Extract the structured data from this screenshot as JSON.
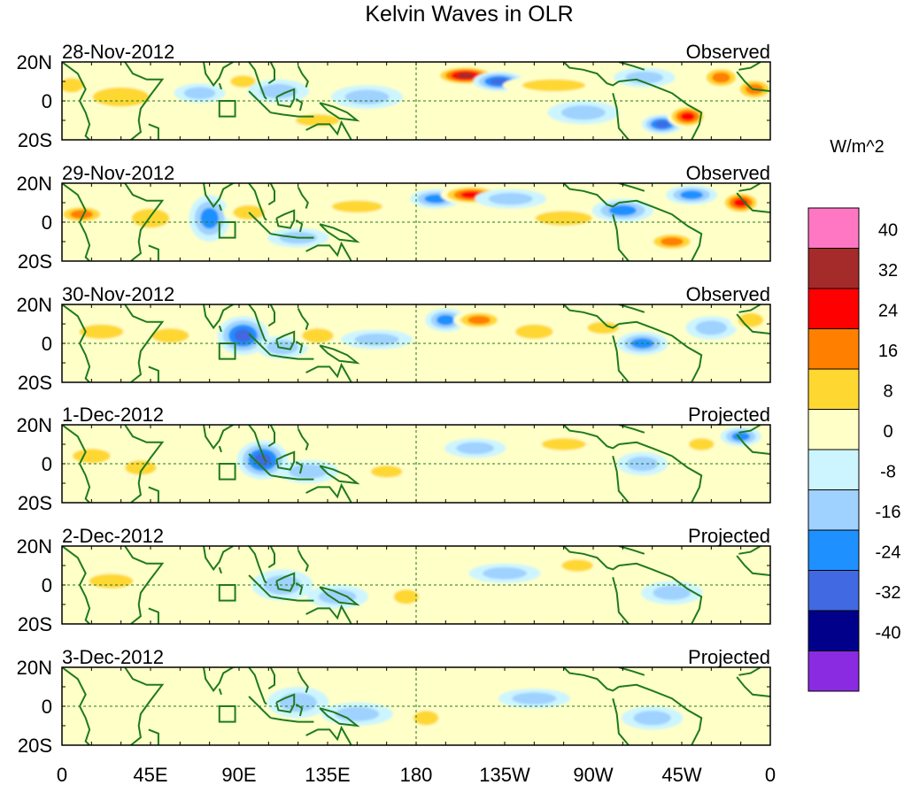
{
  "chart_data": {
    "type": "heatmap",
    "title": "Kelvin Waves in OLR",
    "units_label": "W/m^2",
    "lat_ticks": [
      "20N",
      "0",
      "20S"
    ],
    "lat_range": [
      -20,
      20
    ],
    "lon_range": [
      0,
      360
    ],
    "lon_ticks": [
      {
        "lon": 0,
        "label": "0"
      },
      {
        "lon": 45,
        "label": "45E"
      },
      {
        "lon": 90,
        "label": "90E"
      },
      {
        "lon": 135,
        "label": "135E"
      },
      {
        "lon": 180,
        "label": "180"
      },
      {
        "lon": 225,
        "label": "135W"
      },
      {
        "lon": 270,
        "label": "90W"
      },
      {
        "lon": 315,
        "label": "45W"
      },
      {
        "lon": 360,
        "label": "0"
      }
    ],
    "colorbar": {
      "bins": [
        {
          "color": "#ff77c3",
          "label": "40"
        },
        {
          "color": "#a52a2a",
          "label": "32"
        },
        {
          "color": "#ff0000",
          "label": "24"
        },
        {
          "color": "#ff7f00",
          "label": "16"
        },
        {
          "color": "#ffd731",
          "label": "8"
        },
        {
          "color": "#ffffc8",
          "label": "0"
        },
        {
          "color": "#cdf5ff",
          "label": "-8"
        },
        {
          "color": "#a0d2ff",
          "label": "-16"
        },
        {
          "color": "#1e90ff",
          "label": "-24"
        },
        {
          "color": "#4169e1",
          "label": "-32"
        },
        {
          "color": "#00008b",
          "label": "-40"
        },
        {
          "color": "#8a2be2",
          "label": ""
        }
      ]
    },
    "panels": [
      {
        "date": "28-Nov-2012",
        "status": "Observed",
        "anomalies": [
          {
            "lon": 5,
            "lat": 8,
            "v": 14,
            "w": 8,
            "h": 6
          },
          {
            "lon": 30,
            "lat": 2,
            "v": 10,
            "w": 18,
            "h": 8
          },
          {
            "lon": 70,
            "lat": 4,
            "v": -14,
            "w": 10,
            "h": 5
          },
          {
            "lon": 92,
            "lat": 10,
            "v": 14,
            "w": 8,
            "h": 5
          },
          {
            "lon": 110,
            "lat": 5,
            "v": -10,
            "w": 12,
            "h": 6
          },
          {
            "lon": 130,
            "lat": -10,
            "v": 8,
            "w": 14,
            "h": 5
          },
          {
            "lon": 155,
            "lat": 2,
            "v": -8,
            "w": 14,
            "h": 6
          },
          {
            "lon": 205,
            "lat": 13,
            "v": 34,
            "w": 12,
            "h": 5
          },
          {
            "lon": 222,
            "lat": 10,
            "v": -24,
            "w": 10,
            "h": 5
          },
          {
            "lon": 250,
            "lat": 8,
            "v": 10,
            "w": 20,
            "h": 5
          },
          {
            "lon": 265,
            "lat": -6,
            "v": -10,
            "w": 14,
            "h": 6
          },
          {
            "lon": 296,
            "lat": 12,
            "v": -14,
            "w": 12,
            "h": 5
          },
          {
            "lon": 305,
            "lat": -12,
            "v": -24,
            "w": 8,
            "h": 5
          },
          {
            "lon": 318,
            "lat": -8,
            "v": 24,
            "w": 8,
            "h": 6
          },
          {
            "lon": 335,
            "lat": 12,
            "v": 22,
            "w": 8,
            "h": 6
          },
          {
            "lon": 352,
            "lat": 6,
            "v": 16,
            "w": 8,
            "h": 6
          }
        ]
      },
      {
        "date": "29-Nov-2012",
        "status": "Observed",
        "anomalies": [
          {
            "lon": 10,
            "lat": 4,
            "v": 16,
            "w": 10,
            "h": 5
          },
          {
            "lon": 45,
            "lat": 2,
            "v": 8,
            "w": 12,
            "h": 8
          },
          {
            "lon": 75,
            "lat": 2,
            "v": -20,
            "w": 8,
            "h": 12
          },
          {
            "lon": 95,
            "lat": 5,
            "v": 10,
            "w": 10,
            "h": 6
          },
          {
            "lon": 120,
            "lat": -8,
            "v": -10,
            "w": 12,
            "h": 5
          },
          {
            "lon": 150,
            "lat": 8,
            "v": 8,
            "w": 16,
            "h": 5
          },
          {
            "lon": 190,
            "lat": 12,
            "v": -20,
            "w": 10,
            "h": 5
          },
          {
            "lon": 208,
            "lat": 14,
            "v": 30,
            "w": 12,
            "h": 5
          },
          {
            "lon": 228,
            "lat": 12,
            "v": -14,
            "w": 14,
            "h": 5
          },
          {
            "lon": 255,
            "lat": 2,
            "v": 8,
            "w": 18,
            "h": 6
          },
          {
            "lon": 285,
            "lat": 6,
            "v": -18,
            "w": 12,
            "h": 6
          },
          {
            "lon": 310,
            "lat": -10,
            "v": 20,
            "w": 10,
            "h": 5
          },
          {
            "lon": 320,
            "lat": 14,
            "v": -16,
            "w": 10,
            "h": 5
          },
          {
            "lon": 345,
            "lat": 10,
            "v": 24,
            "w": 8,
            "h": 6
          }
        ]
      },
      {
        "date": "30-Nov-2012",
        "status": "Observed",
        "anomalies": [
          {
            "lon": 20,
            "lat": 6,
            "v": 14,
            "w": 14,
            "h": 6
          },
          {
            "lon": 55,
            "lat": 4,
            "v": 8,
            "w": 12,
            "h": 6
          },
          {
            "lon": 92,
            "lat": 4,
            "v": -24,
            "w": 10,
            "h": 10
          },
          {
            "lon": 112,
            "lat": -2,
            "v": -12,
            "w": 10,
            "h": 6
          },
          {
            "lon": 130,
            "lat": 4,
            "v": 10,
            "w": 10,
            "h": 6
          },
          {
            "lon": 160,
            "lat": 2,
            "v": -8,
            "w": 14,
            "h": 5
          },
          {
            "lon": 195,
            "lat": 12,
            "v": -18,
            "w": 8,
            "h": 6
          },
          {
            "lon": 212,
            "lat": 12,
            "v": 22,
            "w": 10,
            "h": 5
          },
          {
            "lon": 240,
            "lat": 6,
            "v": 12,
            "w": 12,
            "h": 6
          },
          {
            "lon": 275,
            "lat": 8,
            "v": 14,
            "w": 10,
            "h": 5
          },
          {
            "lon": 295,
            "lat": 0,
            "v": -16,
            "w": 10,
            "h": 6
          },
          {
            "lon": 330,
            "lat": 8,
            "v": -14,
            "w": 10,
            "h": 6
          },
          {
            "lon": 350,
            "lat": 12,
            "v": 12,
            "w": 8,
            "h": 6
          }
        ]
      },
      {
        "date": "1-Dec-2012",
        "status": "Projected",
        "anomalies": [
          {
            "lon": 15,
            "lat": 4,
            "v": 8,
            "w": 12,
            "h": 6
          },
          {
            "lon": 40,
            "lat": -2,
            "v": 8,
            "w": 10,
            "h": 6
          },
          {
            "lon": 102,
            "lat": 2,
            "v": -24,
            "w": 10,
            "h": 10
          },
          {
            "lon": 125,
            "lat": -4,
            "v": -10,
            "w": 12,
            "h": 6
          },
          {
            "lon": 165,
            "lat": -4,
            "v": 8,
            "w": 10,
            "h": 5
          },
          {
            "lon": 210,
            "lat": 8,
            "v": -10,
            "w": 12,
            "h": 5
          },
          {
            "lon": 255,
            "lat": 10,
            "v": 12,
            "w": 14,
            "h": 5
          },
          {
            "lon": 295,
            "lat": 0,
            "v": -14,
            "w": 10,
            "h": 6
          },
          {
            "lon": 325,
            "lat": 10,
            "v": 10,
            "w": 8,
            "h": 5
          },
          {
            "lon": 345,
            "lat": 14,
            "v": -16,
            "w": 8,
            "h": 5
          }
        ]
      },
      {
        "date": "2-Dec-2012",
        "status": "Projected",
        "anomalies": [
          {
            "lon": 25,
            "lat": 2,
            "v": 8,
            "w": 14,
            "h": 6
          },
          {
            "lon": 112,
            "lat": 0,
            "v": -14,
            "w": 12,
            "h": 8
          },
          {
            "lon": 140,
            "lat": -6,
            "v": -8,
            "w": 12,
            "h": 6
          },
          {
            "lon": 175,
            "lat": -6,
            "v": 10,
            "w": 8,
            "h": 6
          },
          {
            "lon": 225,
            "lat": 6,
            "v": -8,
            "w": 14,
            "h": 5
          },
          {
            "lon": 262,
            "lat": 10,
            "v": 8,
            "w": 10,
            "h": 5
          },
          {
            "lon": 310,
            "lat": -4,
            "v": -10,
            "w": 12,
            "h": 6
          }
        ]
      },
      {
        "date": "3-Dec-2012",
        "status": "Projected",
        "anomalies": [
          {
            "lon": 40,
            "lat": 2,
            "v": 6,
            "w": 14,
            "h": 6
          },
          {
            "lon": 120,
            "lat": 2,
            "v": -10,
            "w": 12,
            "h": 8
          },
          {
            "lon": 150,
            "lat": -4,
            "v": -8,
            "w": 14,
            "h": 6
          },
          {
            "lon": 185,
            "lat": -6,
            "v": 8,
            "w": 8,
            "h": 6
          },
          {
            "lon": 240,
            "lat": 4,
            "v": -8,
            "w": 14,
            "h": 5
          },
          {
            "lon": 300,
            "lat": -6,
            "v": -8,
            "w": 12,
            "h": 6
          }
        ]
      }
    ]
  }
}
